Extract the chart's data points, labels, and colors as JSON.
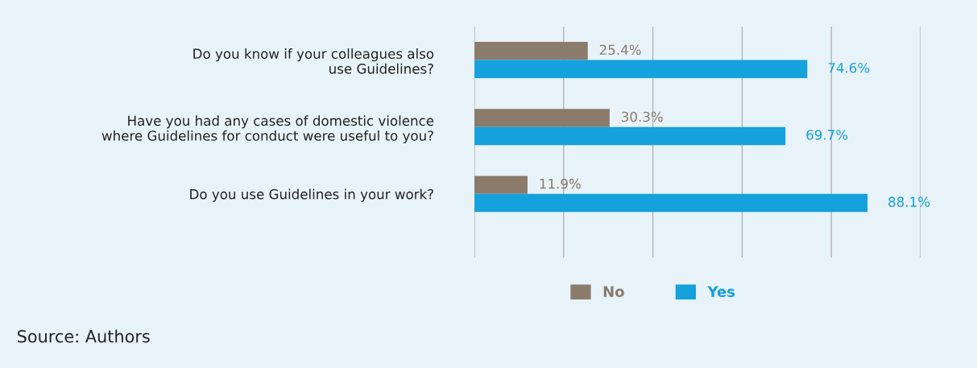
{
  "chart_data": {
    "type": "bar",
    "orientation": "horizontal",
    "categories": [
      "Do you know if your colleagues also\nuse Guidelines?",
      "Have you had any cases of domestic violence\nwhere Guidelines for conduct were useful to you?",
      "Do you use Guidelines in your work?"
    ],
    "series": [
      {
        "name": "No",
        "color": "#8a7b6b",
        "values": [
          25.4,
          30.3,
          11.9
        ],
        "value_labels": [
          "25.4%",
          "30.3%",
          "11.9%"
        ]
      },
      {
        "name": "Yes",
        "color": "#14a1dc",
        "values": [
          74.6,
          69.7,
          88.1
        ],
        "value_labels": [
          "74.6%",
          "69.7%",
          "88.1%"
        ]
      }
    ],
    "xlim": [
      0,
      100
    ],
    "xticks": [
      {
        "value": 0,
        "label": null
      },
      {
        "value": 20,
        "label": null
      },
      {
        "value": 40,
        "label": null
      },
      {
        "value": 60,
        "label": null
      },
      {
        "value": 80,
        "label": null
      },
      {
        "value": 100,
        "label": null
      }
    ],
    "tick_labels": "y",
    "grid": "x",
    "legend": "bottom",
    "annotations": [
      "Source: Authors"
    ]
  }
}
